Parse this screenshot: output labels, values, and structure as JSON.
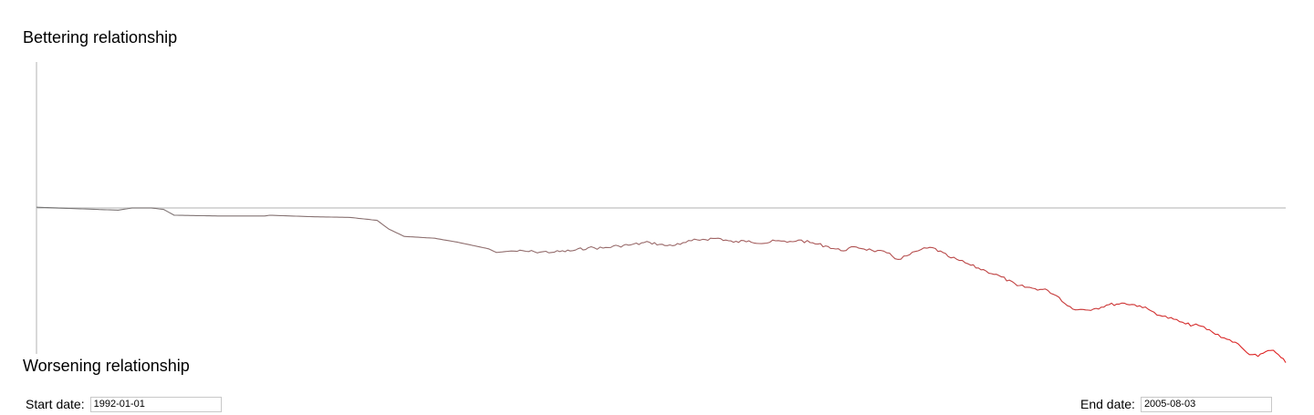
{
  "labels": {
    "top": "Bettering relationship",
    "bottom": "Worsening relationship"
  },
  "controls": {
    "start_label": "Start date:",
    "start_value": "1992-01-01",
    "end_label": "End date:",
    "end_value": "2005-08-03"
  },
  "colors": {
    "axis": "#cccccc",
    "line_start": "#777777",
    "line_end": "#e02020"
  },
  "chart_data": {
    "type": "line",
    "title": "",
    "xlabel": "",
    "ylabel": "",
    "xlim": [
      "1992-01-01",
      "2005-08-03"
    ],
    "ylim": [
      -40,
      40
    ],
    "y_axis_labels": {
      "top": "Bettering relationship",
      "bottom": "Worsening relationship"
    },
    "baseline": 0,
    "gradient": "gray at start to red at end",
    "series": [
      {
        "x": [
          "1992-01-01",
          "1992-11-20",
          "1993-01-15",
          "1993-04-01",
          "1993-05-20",
          "1993-07-01",
          "1994-01-01",
          "1994-06-25",
          "1994-07-15",
          "1995-01-01",
          "1995-06-01",
          "1995-09-15",
          "1995-11-01",
          "1996-01-01",
          "1996-05-01",
          "1996-08-01",
          "1996-12-01",
          "1997-01-01",
          "1997-03-01",
          "1997-06-01",
          "1997-08-20",
          "1997-11-01",
          "1998-01-01",
          "1998-03-01",
          "1998-05-01",
          "1998-06-20",
          "1998-09-01",
          "1998-11-01",
          "1999-01-01",
          "1999-02-15",
          "1999-04-01",
          "1999-06-01",
          "1999-08-01",
          "1999-10-01",
          "1999-12-01",
          "2000-01-15",
          "2000-03-01",
          "2000-04-15",
          "2000-06-01",
          "2000-08-01",
          "2000-10-01",
          "2000-12-01",
          "2001-02-01",
          "2001-04-01",
          "2001-05-15",
          "2001-07-01",
          "2001-08-15",
          "2001-10-01",
          "2001-12-01",
          "2002-01-15",
          "2002-03-01",
          "2002-05-01",
          "2002-07-01",
          "2002-09-01",
          "2002-11-01",
          "2003-01-01",
          "2003-02-15",
          "2003-03-20",
          "2003-05-01",
          "2003-07-01",
          "2003-09-01",
          "2003-11-01",
          "2004-01-01",
          "2004-02-15",
          "2004-04-01",
          "2004-05-15",
          "2004-07-01",
          "2004-09-01",
          "2004-10-15",
          "2004-12-01",
          "2005-01-15",
          "2005-03-01",
          "2005-04-15",
          "2005-05-15",
          "2005-06-15",
          "2005-07-15",
          "2005-08-03"
        ],
        "y": [
          0.2,
          -0.6,
          0.0,
          0.0,
          -0.4,
          -2.0,
          -2.2,
          -2.2,
          -2.0,
          -2.4,
          -2.6,
          -3.4,
          -5.8,
          -7.8,
          -8.3,
          -9.4,
          -11.2,
          -12.2,
          -11.8,
          -12.0,
          -12.1,
          -11.7,
          -10.9,
          -11.0,
          -10.4,
          -10.1,
          -9.4,
          -10.3,
          -10.0,
          -9.0,
          -8.6,
          -8.3,
          -9.4,
          -9.0,
          -9.7,
          -9.0,
          -9.4,
          -8.8,
          -9.5,
          -10.4,
          -11.7,
          -10.7,
          -11.6,
          -12.3,
          -14.1,
          -12.8,
          -11.4,
          -10.9,
          -13.3,
          -14.4,
          -15.7,
          -17.3,
          -18.9,
          -21.3,
          -22.0,
          -22.6,
          -24.5,
          -26.8,
          -27.9,
          -27.7,
          -26.5,
          -26.1,
          -26.8,
          -28.2,
          -29.7,
          -30.5,
          -31.8,
          -32.4,
          -34.0,
          -35.6,
          -36.8,
          -39.6,
          -40.7,
          -39.4,
          -39.0,
          -41.0,
          -42.4
        ]
      }
    ]
  }
}
